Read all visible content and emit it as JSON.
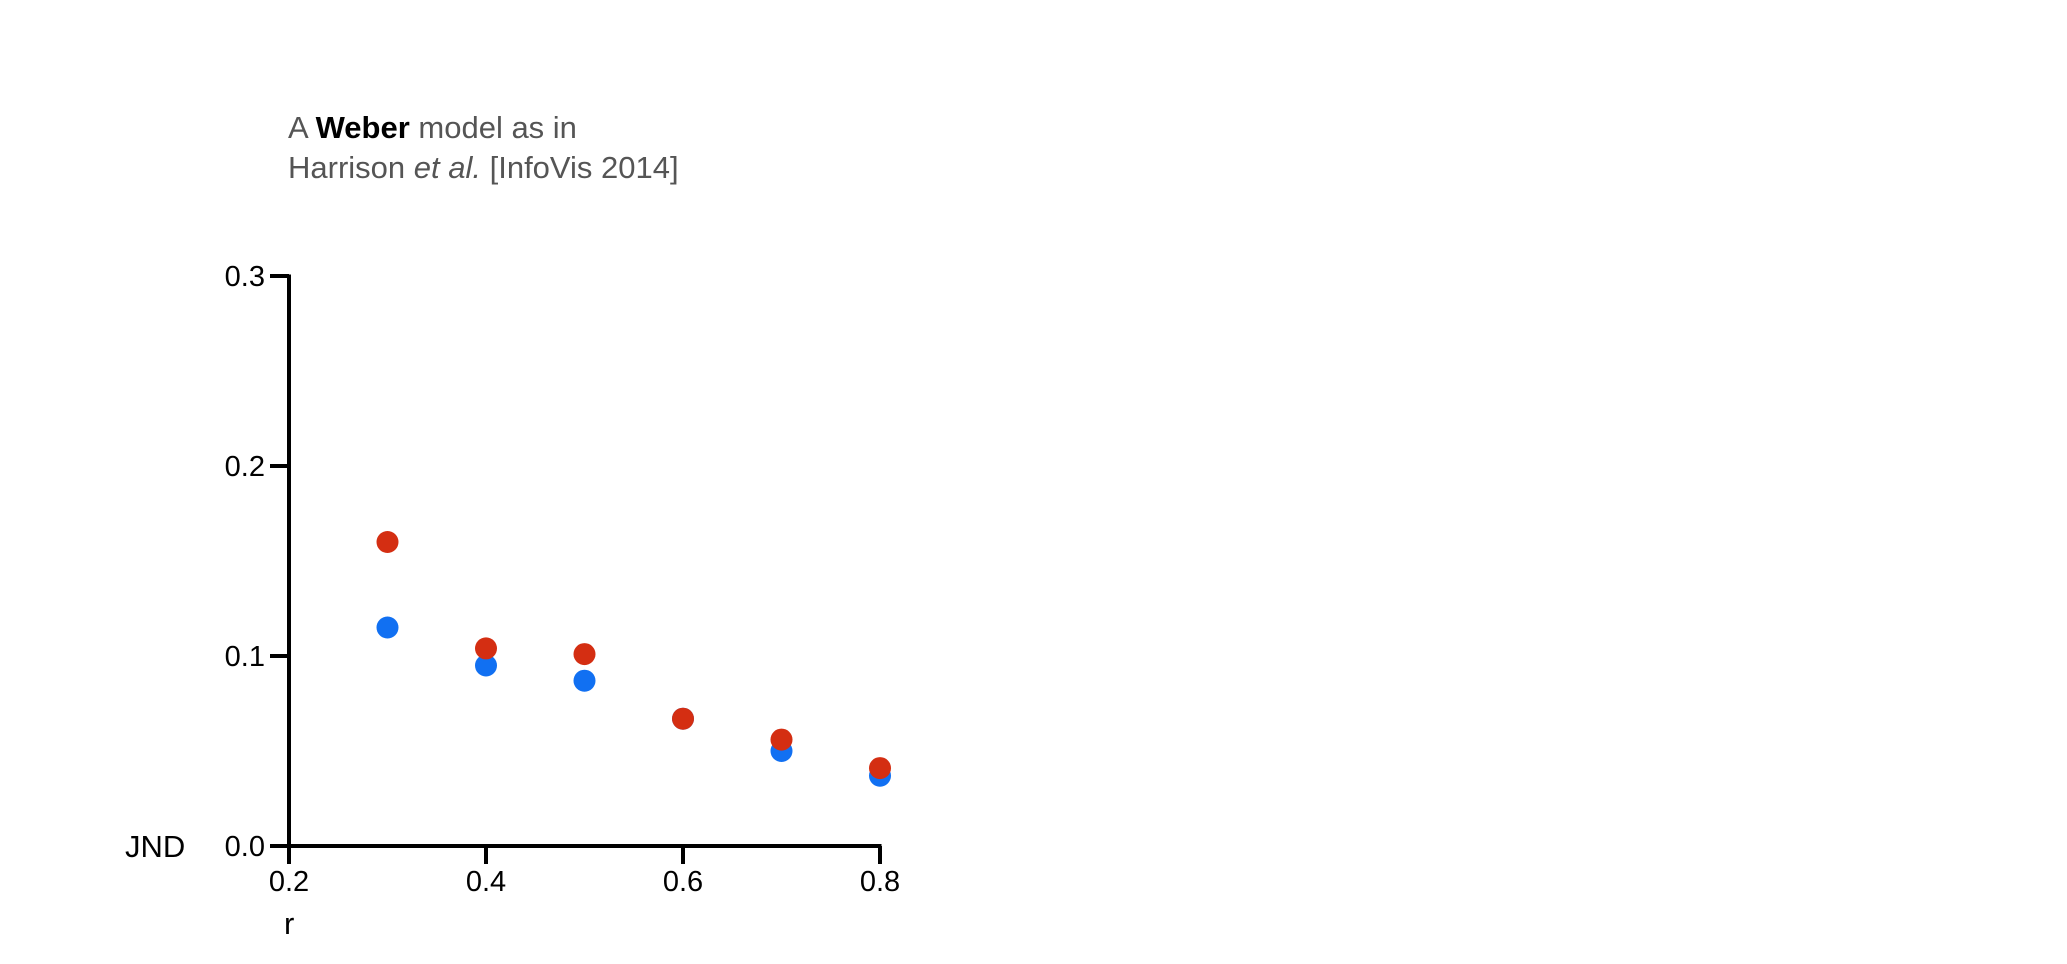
{
  "title": {
    "line1_prefix": "A ",
    "line1_bold": "Weber",
    "line1_suffix": " model as in",
    "line2_prefix": "Harrison ",
    "line2_italic": "et al.",
    "line2_suffix": " [InfoVis 2014]"
  },
  "chart_data": {
    "type": "scatter",
    "title": "A Weber model as in Harrison et al. [InfoVis 2014]",
    "xlabel": "r",
    "ylabel": "JND",
    "xlim": [
      0.2,
      0.8
    ],
    "ylim": [
      0.0,
      0.3
    ],
    "xticks": [
      "0.2",
      "0.4",
      "0.6",
      "0.8"
    ],
    "yticks": [
      "0.0",
      "0.1",
      "0.2",
      "0.3"
    ],
    "grid": false,
    "x": [
      0.3,
      0.4,
      0.5,
      0.6,
      0.7,
      0.8
    ],
    "series": [
      {
        "color": "#1170f2",
        "values": [
          0.115,
          0.095,
          0.087,
          0.067,
          0.05,
          0.037
        ]
      },
      {
        "color": "#d42e12",
        "values": [
          0.16,
          0.104,
          0.101,
          0.067,
          0.056,
          0.041
        ]
      }
    ]
  }
}
